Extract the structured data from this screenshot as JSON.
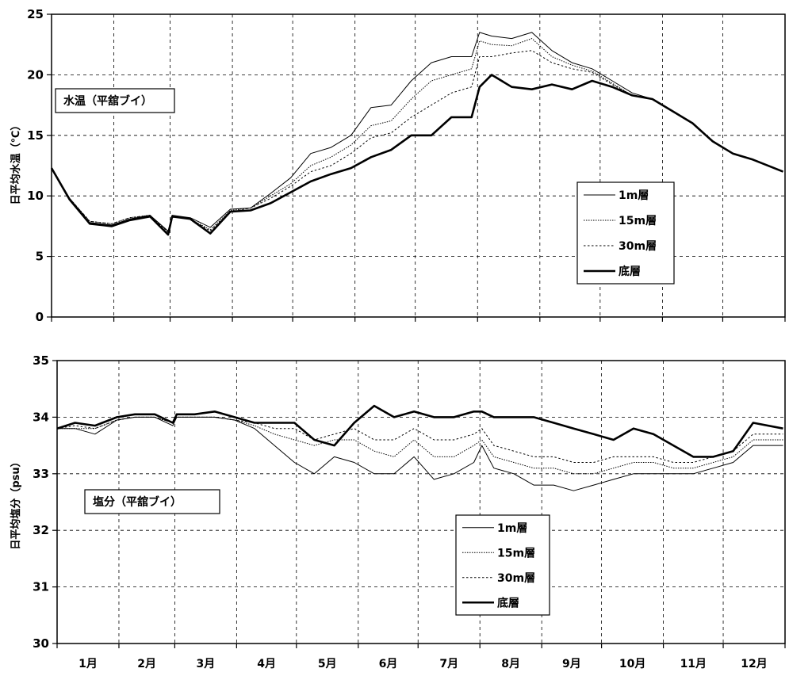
{
  "chart_data": [
    {
      "type": "line",
      "ylabel": "日平均水温（℃）",
      "panel_label": "水温（平舘ブイ）",
      "ylim": [
        0,
        25
      ],
      "yticks": [
        0,
        5,
        10,
        15,
        20,
        25
      ],
      "x_months": [
        "1月",
        "2月",
        "3月",
        "4月",
        "5月",
        "6月",
        "7月",
        "8月",
        "9月",
        "10月",
        "11月",
        "12月"
      ],
      "grid": true,
      "legend": "right-center",
      "series": [
        {
          "name": "1m層",
          "style": "thin-solid",
          "x": [
            1,
            10,
            20,
            31,
            40,
            50,
            59,
            61,
            70,
            80,
            90,
            100,
            110,
            120,
            130,
            140,
            150,
            160,
            170,
            180,
            190,
            200,
            210,
            214,
            220,
            230,
            240,
            250,
            260,
            270,
            280,
            290,
            300,
            310,
            320,
            330,
            340,
            350,
            365
          ],
          "y": [
            12.3,
            9.8,
            7.8,
            7.6,
            8.1,
            8.4,
            7.1,
            8.4,
            8.2,
            7.4,
            8.9,
            9.0,
            10.2,
            11.5,
            13.5,
            14.0,
            15.0,
            17.3,
            17.5,
            19.5,
            21.0,
            21.5,
            21.5,
            23.5,
            23.2,
            23.0,
            23.5,
            22.0,
            21.0,
            20.5,
            19.5,
            18.5,
            18.0,
            17.0,
            16.0,
            14.5,
            13.5,
            13.0,
            12.0
          ]
        },
        {
          "name": "15m層",
          "style": "fine-dotted",
          "x": [
            1,
            10,
            20,
            31,
            40,
            50,
            59,
            61,
            70,
            80,
            90,
            100,
            110,
            120,
            130,
            140,
            150,
            160,
            170,
            180,
            190,
            200,
            210,
            214,
            220,
            230,
            240,
            250,
            260,
            270,
            280,
            290,
            300,
            310,
            320,
            330,
            340,
            350,
            365
          ],
          "y": [
            12.3,
            9.8,
            7.9,
            7.7,
            8.2,
            8.4,
            7.0,
            8.3,
            8.1,
            7.2,
            8.8,
            9.0,
            10.0,
            11.0,
            12.5,
            13.2,
            14.2,
            15.8,
            16.2,
            18.0,
            19.5,
            20.0,
            20.5,
            22.8,
            22.5,
            22.4,
            23.0,
            21.5,
            20.8,
            20.3,
            19.3,
            18.3,
            18.0,
            17.0,
            16.0,
            14.5,
            13.5,
            13.0,
            12.0
          ]
        },
        {
          "name": "30m層",
          "style": "dotted",
          "x": [
            1,
            10,
            20,
            31,
            40,
            50,
            59,
            61,
            70,
            80,
            90,
            100,
            110,
            120,
            130,
            140,
            150,
            160,
            170,
            180,
            190,
            200,
            210,
            214,
            220,
            230,
            240,
            250,
            260,
            270,
            280,
            290,
            300,
            310,
            320,
            330,
            340,
            350,
            365
          ],
          "y": [
            12.3,
            9.8,
            7.9,
            7.7,
            8.2,
            8.4,
            7.0,
            8.3,
            8.1,
            7.1,
            8.7,
            9.0,
            9.8,
            10.8,
            12.0,
            12.5,
            13.5,
            14.8,
            15.2,
            16.5,
            17.5,
            18.5,
            19.0,
            21.5,
            21.5,
            21.8,
            22.0,
            21.0,
            20.5,
            20.2,
            19.2,
            18.3,
            18.0,
            17.0,
            16.0,
            14.5,
            13.5,
            13.0,
            12.0
          ]
        },
        {
          "name": "底層",
          "style": "thick-solid",
          "x": [
            1,
            10,
            20,
            31,
            40,
            50,
            59,
            61,
            70,
            80,
            90,
            100,
            110,
            120,
            130,
            140,
            150,
            160,
            170,
            180,
            190,
            200,
            210,
            214,
            220,
            230,
            240,
            250,
            260,
            270,
            280,
            290,
            300,
            310,
            320,
            330,
            340,
            350,
            365
          ],
          "y": [
            12.3,
            9.7,
            7.7,
            7.5,
            8.0,
            8.3,
            6.8,
            8.3,
            8.1,
            6.9,
            8.7,
            8.8,
            9.4,
            10.3,
            11.2,
            11.8,
            12.3,
            13.2,
            13.8,
            15.0,
            15.0,
            16.5,
            16.5,
            19.0,
            20.0,
            19.0,
            18.8,
            19.2,
            18.8,
            19.5,
            19.0,
            18.3,
            18.0,
            17.0,
            16.0,
            14.5,
            13.5,
            13.0,
            12.0
          ]
        }
      ],
      "legend_entries": [
        "1m層",
        "15m層",
        "30m層",
        "底層"
      ]
    },
    {
      "type": "line",
      "ylabel": "日平均塩分（psu）",
      "panel_label": "塩分（平舘ブイ）",
      "ylim": [
        30,
        35
      ],
      "yticks": [
        30,
        31,
        32,
        33,
        34,
        35
      ],
      "x_months": [
        "1月",
        "2月",
        "3月",
        "4月",
        "5月",
        "6月",
        "7月",
        "8月",
        "9月",
        "10月",
        "11月",
        "12月"
      ],
      "grid": true,
      "legend": "center-bottom",
      "series": [
        {
          "name": "1m層",
          "style": "thin-solid",
          "x": [
            1,
            10,
            20,
            31,
            40,
            50,
            59,
            61,
            70,
            80,
            90,
            100,
            110,
            120,
            130,
            140,
            150,
            160,
            170,
            180,
            190,
            200,
            210,
            214,
            220,
            230,
            240,
            250,
            260,
            270,
            280,
            290,
            300,
            310,
            320,
            330,
            340,
            350,
            365
          ],
          "y": [
            33.8,
            33.8,
            33.7,
            33.95,
            34.0,
            34.0,
            33.85,
            34.0,
            34.0,
            34.0,
            33.95,
            33.8,
            33.5,
            33.2,
            33.0,
            33.3,
            33.2,
            33.0,
            33.0,
            33.3,
            32.9,
            33.0,
            33.2,
            33.5,
            33.1,
            33.0,
            32.8,
            32.8,
            32.7,
            32.8,
            32.9,
            33.0,
            33.0,
            33.0,
            33.0,
            33.1,
            33.2,
            33.5,
            33.5
          ]
        },
        {
          "name": "15m層",
          "style": "fine-dotted",
          "x": [
            1,
            10,
            20,
            31,
            40,
            50,
            59,
            61,
            70,
            80,
            90,
            100,
            110,
            120,
            130,
            140,
            150,
            160,
            170,
            180,
            190,
            200,
            210,
            214,
            220,
            230,
            240,
            250,
            260,
            270,
            280,
            290,
            300,
            310,
            320,
            330,
            340,
            350,
            365
          ],
          "y": [
            33.8,
            33.8,
            33.8,
            33.95,
            34.0,
            34.0,
            33.9,
            34.0,
            34.0,
            34.0,
            33.95,
            33.85,
            33.7,
            33.6,
            33.5,
            33.6,
            33.6,
            33.4,
            33.3,
            33.6,
            33.3,
            33.3,
            33.5,
            33.6,
            33.3,
            33.2,
            33.1,
            33.1,
            33.0,
            33.0,
            33.1,
            33.2,
            33.2,
            33.1,
            33.1,
            33.2,
            33.3,
            33.6,
            33.6
          ]
        },
        {
          "name": "30m層",
          "style": "dotted",
          "x": [
            1,
            10,
            20,
            31,
            40,
            50,
            59,
            61,
            70,
            80,
            90,
            100,
            110,
            120,
            130,
            140,
            150,
            160,
            170,
            180,
            190,
            200,
            210,
            214,
            220,
            230,
            240,
            250,
            260,
            270,
            280,
            290,
            300,
            310,
            320,
            330,
            340,
            350,
            365
          ],
          "y": [
            33.8,
            33.85,
            33.8,
            33.95,
            34.0,
            34.0,
            33.9,
            34.0,
            34.0,
            34.0,
            33.95,
            33.9,
            33.8,
            33.8,
            33.6,
            33.7,
            33.8,
            33.6,
            33.6,
            33.8,
            33.6,
            33.6,
            33.7,
            33.8,
            33.5,
            33.4,
            33.3,
            33.3,
            33.2,
            33.2,
            33.3,
            33.3,
            33.3,
            33.2,
            33.2,
            33.3,
            33.4,
            33.7,
            33.7
          ]
        },
        {
          "name": "底層",
          "style": "thick-solid",
          "x": [
            1,
            10,
            20,
            31,
            40,
            50,
            59,
            61,
            70,
            80,
            90,
            100,
            110,
            120,
            130,
            140,
            150,
            160,
            170,
            180,
            190,
            200,
            210,
            214,
            220,
            230,
            240,
            250,
            260,
            270,
            280,
            290,
            300,
            310,
            320,
            330,
            340,
            350,
            365
          ],
          "y": [
            33.8,
            33.9,
            33.85,
            34.0,
            34.05,
            34.05,
            33.9,
            34.05,
            34.05,
            34.1,
            34.0,
            33.9,
            33.9,
            33.9,
            33.6,
            33.5,
            33.9,
            34.2,
            34.0,
            34.1,
            34.0,
            34.0,
            34.1,
            34.1,
            34.0,
            34.0,
            34.0,
            33.9,
            33.8,
            33.7,
            33.6,
            33.8,
            33.7,
            33.5,
            33.3,
            33.3,
            33.4,
            33.9,
            33.8
          ]
        }
      ],
      "legend_entries": [
        "1m層",
        "15m層",
        "30m層",
        "底層"
      ]
    }
  ]
}
